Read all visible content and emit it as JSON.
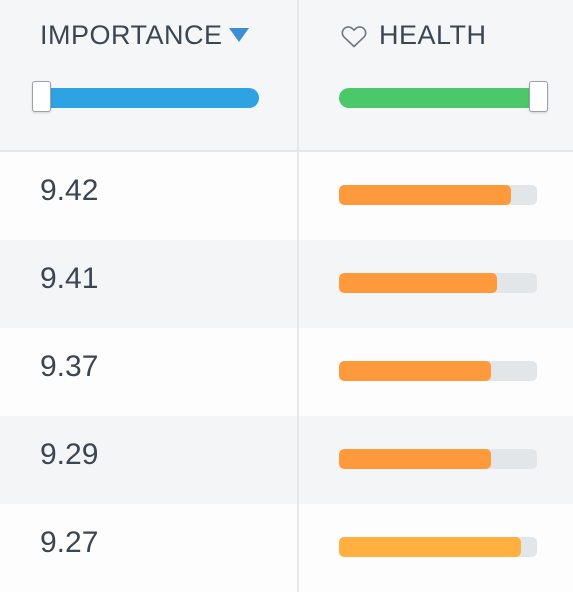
{
  "header": {
    "importance_label": "IMPORTANCE",
    "health_label": "HEALTH",
    "sort_direction": "descending",
    "sort_icon": "triangle-down-icon",
    "health_icon": "heart-outline-icon"
  },
  "filters": {
    "importance": {
      "min": 0,
      "max": 1
    },
    "health": {
      "min": 0,
      "max": 1
    }
  },
  "rows": [
    {
      "importance": "9.42",
      "health": 0.87,
      "health_color": "#ff9a3c"
    },
    {
      "importance": "9.41",
      "health": 0.8,
      "health_color": "#ff9a3c"
    },
    {
      "importance": "9.37",
      "health": 0.77,
      "health_color": "#ff9a3c"
    },
    {
      "importance": "9.29",
      "health": 0.77,
      "health_color": "#ff9a3c"
    },
    {
      "importance": "9.27",
      "health": 0.92,
      "health_color": "#ffb040"
    }
  ],
  "colors": {
    "importance_track": "#2ea3e3",
    "health_track": "#4bc96a",
    "sort_arrow": "#3d8fd4"
  }
}
